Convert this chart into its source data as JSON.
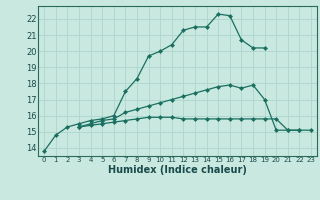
{
  "xlabel": "Humidex (Indice chaleur)",
  "bg_color": "#c8e8e0",
  "grid_color": "#b0d8d0",
  "line_color": "#1a7060",
  "xlim": [
    -0.5,
    23.5
  ],
  "ylim": [
    13.5,
    22.8
  ],
  "yticks": [
    14,
    15,
    16,
    17,
    18,
    19,
    20,
    21,
    22
  ],
  "xticks": [
    0,
    1,
    2,
    3,
    4,
    5,
    6,
    7,
    8,
    9,
    10,
    11,
    12,
    13,
    14,
    15,
    16,
    17,
    18,
    19,
    20,
    21,
    22,
    23
  ],
  "s1_x": [
    0,
    1,
    2,
    3,
    4,
    5,
    6,
    7,
    8,
    9,
    10,
    11,
    12,
    13,
    14,
    15,
    16,
    17,
    18,
    19
  ],
  "s1_y": [
    13.8,
    14.8,
    15.3,
    15.5,
    15.7,
    15.8,
    16.0,
    17.5,
    18.3,
    19.7,
    20.0,
    20.4,
    21.3,
    21.5,
    21.5,
    22.3,
    22.2,
    20.7,
    20.2,
    20.2
  ],
  "s2_x": [
    3,
    4,
    5,
    6,
    7,
    8,
    9,
    10,
    11,
    12,
    13,
    14,
    15,
    16,
    17,
    18,
    19,
    20,
    21,
    22
  ],
  "s2_y": [
    15.3,
    15.5,
    15.7,
    15.8,
    16.2,
    16.4,
    16.6,
    16.8,
    17.0,
    17.2,
    17.4,
    17.6,
    17.8,
    17.9,
    17.7,
    17.9,
    17.0,
    15.1,
    15.1,
    15.1
  ],
  "s3_x": [
    3,
    4,
    5,
    6,
    7,
    8,
    9,
    10,
    11,
    12,
    13,
    14,
    15,
    16,
    17,
    18,
    19,
    20,
    21,
    22,
    23
  ],
  "s3_y": [
    15.3,
    15.4,
    15.5,
    15.6,
    15.7,
    15.8,
    15.9,
    15.9,
    15.9,
    15.8,
    15.8,
    15.8,
    15.8,
    15.8,
    15.8,
    15.8,
    15.8,
    15.8,
    15.1,
    15.1,
    15.1
  ]
}
